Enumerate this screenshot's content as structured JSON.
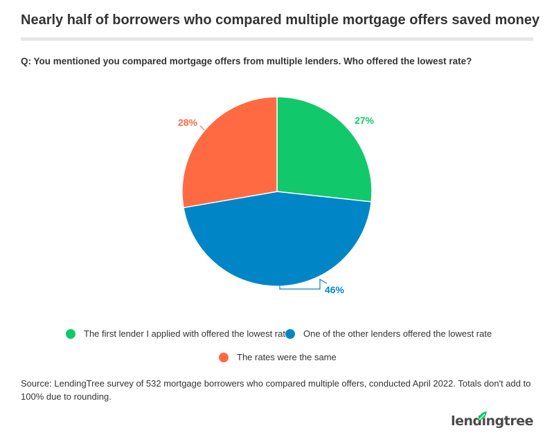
{
  "header": {
    "title": "Nearly half of borrowers who compared multiple mortgage offers saved money",
    "question": "Q: You mentioned you compared mortgage offers from multiple lenders. Who offered the lowest rate?"
  },
  "chart_data": {
    "type": "pie",
    "title": "Nearly half of borrowers who compared multiple mortgage offers saved money",
    "subtitle": "Q: You mentioned you compared mortgage offers from multiple lenders. Who offered the lowest rate?",
    "start": "12 o'clock, clockwise",
    "slices": [
      {
        "label": "The first lender I applied with offered the lowest rate",
        "value": 27,
        "display": "27%",
        "color": "#11c96b"
      },
      {
        "label": "One of the other lenders offered the lowest rate",
        "value": 46,
        "display": "46%",
        "color": "#0086c6"
      },
      {
        "label": "The rates were the same",
        "value": 28,
        "display": "28%",
        "color": "#ff6a43"
      }
    ],
    "legend_placement": "bottom"
  },
  "legend": {
    "items": [
      {
        "label": "The first lender I applied with offered the lowest rate",
        "color": "#11c96b"
      },
      {
        "label": "One of the other lenders offered the lowest rate",
        "color": "#0086c6"
      },
      {
        "label": "The rates were the same",
        "color": "#ff6a43"
      }
    ]
  },
  "footer": {
    "source": "Source: LendingTree survey of 532 mortgage borrowers who compared multiple offers, conducted April 2022. Totals don't add to 100% due to rounding.",
    "logo_text": "lendingtree",
    "logo_color": "#11c96b"
  }
}
